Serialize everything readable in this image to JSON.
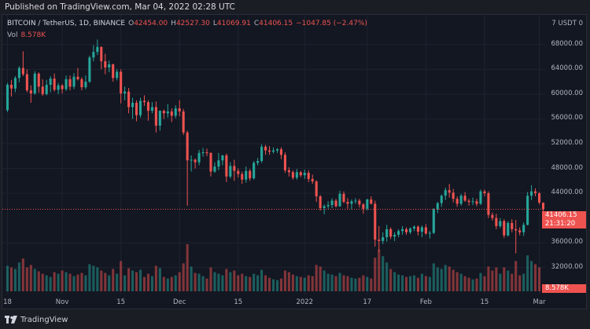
{
  "published": "Published on TradingView.com, Mar 04, 2022 02:28 UTC",
  "legend": {
    "symbol": "BITCOIN / TetherUS, 1D, BINANCE",
    "o_label": "O",
    "o": "42454.00",
    "h_label": "H",
    "h": "42527.30",
    "l_label": "L",
    "l": "41069.91",
    "c_label": "C",
    "c": "41406.15",
    "change": "−1047.85 (−2.47%)"
  },
  "volume": {
    "label": "Vol",
    "value": "8.578K"
  },
  "currency": "7 USDT 0",
  "price_tag": {
    "price": "41406.15",
    "countdown": "21:31:20"
  },
  "volume_tag": "8.578K",
  "brand": "TradingView",
  "colors": {
    "up": "#26a69a",
    "down": "#ef5350",
    "bg": "#131722",
    "grid": "#1f2330"
  },
  "chart_data": {
    "type": "candlestick",
    "y_ticks": [
      "68000.00",
      "64000.00",
      "60000.00",
      "56000.00",
      "52000.00",
      "48000.00",
      "44000.00",
      "36000.00",
      "32000.00"
    ],
    "y_tick_values": [
      68000,
      64000,
      60000,
      56000,
      52000,
      48000,
      44000,
      36000,
      32000
    ],
    "ylim": [
      30200,
      71000
    ],
    "x_ticks": [
      "18",
      "Nov",
      "15",
      "Dec",
      "15",
      "2022",
      "17",
      "Feb",
      "15",
      "Mar"
    ],
    "x_tick_index": [
      0,
      14,
      29,
      44,
      59,
      76,
      92,
      107,
      122,
      136
    ],
    "last_price": 41406.15,
    "ohlcv": [
      [
        57400,
        61800,
        57100,
        61500,
        32
      ],
      [
        61500,
        62300,
        59600,
        60900,
        30
      ],
      [
        60900,
        62900,
        60300,
        62600,
        28
      ],
      [
        62600,
        64500,
        61900,
        64200,
        36
      ],
      [
        64200,
        66900,
        62900,
        63200,
        41
      ],
      [
        63200,
        64000,
        60300,
        60600,
        30
      ],
      [
        60600,
        61400,
        58600,
        60100,
        33
      ],
      [
        60100,
        63700,
        59900,
        63300,
        28
      ],
      [
        63300,
        63500,
        60200,
        61200,
        25
      ],
      [
        61200,
        62400,
        59700,
        60000,
        22
      ],
      [
        60000,
        62300,
        59800,
        61500,
        20
      ],
      [
        61500,
        62900,
        60300,
        62500,
        18
      ],
      [
        62500,
        63300,
        60400,
        60700,
        24
      ],
      [
        60700,
        61800,
        60000,
        61400,
        22
      ],
      [
        61400,
        61600,
        60100,
        60800,
        26
      ],
      [
        60800,
        63000,
        60500,
        62400,
        24
      ],
      [
        62400,
        63000,
        60600,
        61200,
        22
      ],
      [
        61200,
        63400,
        60800,
        62800,
        19
      ],
      [
        62800,
        64200,
        62200,
        62400,
        21
      ],
      [
        62400,
        62700,
        60600,
        61100,
        23
      ],
      [
        61100,
        63000,
        60800,
        62000,
        20
      ],
      [
        62000,
        66200,
        61800,
        65900,
        34
      ],
      [
        65900,
        67900,
        65300,
        66800,
        32
      ],
      [
        66800,
        68800,
        66300,
        67600,
        30
      ],
      [
        67600,
        67700,
        64000,
        65300,
        26
      ],
      [
        65300,
        66500,
        63200,
        64300,
        23
      ],
      [
        64300,
        65400,
        63500,
        64800,
        20
      ],
      [
        64800,
        64900,
        62000,
        62600,
        28
      ],
      [
        62600,
        64000,
        62200,
        63600,
        22
      ],
      [
        63600,
        64000,
        58500,
        60100,
        38
      ],
      [
        60100,
        61200,
        59000,
        60400,
        20
      ],
      [
        60400,
        61000,
        56900,
        57900,
        29
      ],
      [
        57900,
        59400,
        56000,
        58600,
        26
      ],
      [
        58600,
        59000,
        55600,
        56600,
        24
      ],
      [
        56600,
        59400,
        56200,
        58900,
        27
      ],
      [
        58900,
        59800,
        58100,
        58700,
        18
      ],
      [
        58700,
        59000,
        55700,
        57300,
        22
      ],
      [
        57300,
        58700,
        56900,
        57900,
        19
      ],
      [
        57900,
        58800,
        53800,
        54900,
        32
      ],
      [
        54900,
        57400,
        54100,
        57300,
        29
      ],
      [
        57300,
        57500,
        56000,
        56900,
        18
      ],
      [
        56900,
        58400,
        56200,
        57200,
        16
      ],
      [
        57200,
        57700,
        55500,
        56500,
        18
      ],
      [
        56500,
        58200,
        56100,
        57700,
        20
      ],
      [
        57700,
        59000,
        56400,
        57200,
        24
      ],
      [
        57200,
        57600,
        53400,
        53800,
        35
      ],
      [
        53800,
        54100,
        42000,
        49300,
        59
      ],
      [
        49300,
        50100,
        47500,
        49400,
        31
      ],
      [
        49400,
        49600,
        48000,
        49000,
        23
      ],
      [
        49000,
        51000,
        48500,
        50500,
        22
      ],
      [
        50500,
        51300,
        49900,
        50600,
        19
      ],
      [
        50600,
        51200,
        50000,
        50500,
        16
      ],
      [
        50500,
        50600,
        46700,
        47500,
        30
      ],
      [
        47500,
        49000,
        47300,
        48300,
        24
      ],
      [
        48300,
        50500,
        47700,
        49300,
        22
      ],
      [
        49300,
        50200,
        48500,
        50100,
        20
      ],
      [
        50100,
        50400,
        45800,
        46700,
        28
      ],
      [
        46700,
        49000,
        46400,
        48400,
        24
      ],
      [
        48400,
        49400,
        46000,
        47600,
        26
      ],
      [
        47600,
        48000,
        46500,
        47100,
        20
      ],
      [
        47100,
        47500,
        45500,
        46200,
        22
      ],
      [
        46200,
        48300,
        45700,
        47600,
        19
      ],
      [
        47600,
        47900,
        46000,
        46400,
        18
      ],
      [
        46400,
        49200,
        46200,
        48900,
        22
      ],
      [
        48900,
        49700,
        48500,
        49200,
        20
      ],
      [
        49200,
        51900,
        48900,
        51500,
        27
      ],
      [
        51500,
        51800,
        50200,
        50900,
        20
      ],
      [
        50900,
        51600,
        50200,
        50700,
        17
      ],
      [
        50700,
        51400,
        50400,
        50900,
        15
      ],
      [
        50900,
        51300,
        50500,
        51100,
        14
      ],
      [
        51100,
        51400,
        49500,
        50200,
        16
      ],
      [
        50200,
        50600,
        47300,
        47700,
        26
      ],
      [
        47700,
        48200,
        46700,
        47400,
        24
      ],
      [
        47400,
        47700,
        46200,
        46500,
        21
      ],
      [
        46500,
        47900,
        46200,
        47400,
        19
      ],
      [
        47400,
        47600,
        46600,
        46900,
        18
      ],
      [
        46900,
        47800,
        46300,
        47300,
        17
      ],
      [
        47300,
        47700,
        45800,
        46300,
        20
      ],
      [
        46300,
        47000,
        45500,
        45900,
        19
      ],
      [
        45900,
        46100,
        42600,
        43500,
        33
      ],
      [
        43500,
        43700,
        41200,
        41600,
        31
      ],
      [
        41600,
        42200,
        40600,
        41900,
        26
      ],
      [
        41900,
        42700,
        41500,
        42100,
        22
      ],
      [
        42100,
        43200,
        41600,
        42800,
        21
      ],
      [
        42800,
        43100,
        41700,
        41900,
        19
      ],
      [
        41900,
        44400,
        41800,
        43900,
        23
      ],
      [
        43900,
        44300,
        42400,
        42600,
        20
      ],
      [
        42600,
        43200,
        41500,
        42300,
        19
      ],
      [
        42300,
        43000,
        41400,
        42700,
        17
      ],
      [
        42700,
        43200,
        42300,
        42800,
        16
      ],
      [
        42800,
        43100,
        41700,
        42200,
        17
      ],
      [
        42200,
        42400,
        40700,
        41500,
        20
      ],
      [
        41500,
        43100,
        41200,
        43000,
        18
      ],
      [
        43000,
        43500,
        42200,
        42300,
        16
      ],
      [
        42300,
        42800,
        35400,
        36500,
        42
      ],
      [
        36500,
        38700,
        34600,
        36300,
        52
      ],
      [
        36300,
        37700,
        35800,
        36900,
        44
      ],
      [
        36900,
        38900,
        36200,
        38200,
        36
      ],
      [
        38200,
        38500,
        36600,
        37000,
        28
      ],
      [
        37000,
        37700,
        36300,
        37300,
        24
      ],
      [
        37300,
        38200,
        36900,
        37900,
        21
      ],
      [
        37900,
        38700,
        37300,
        38200,
        20
      ],
      [
        38200,
        38500,
        37300,
        37700,
        18
      ],
      [
        37700,
        38500,
        37400,
        38300,
        19
      ],
      [
        38300,
        38800,
        37900,
        38600,
        20
      ],
      [
        38600,
        38800,
        37200,
        37800,
        17
      ],
      [
        37800,
        38800,
        36900,
        38500,
        22
      ],
      [
        38500,
        39000,
        37300,
        37500,
        19
      ],
      [
        37500,
        37900,
        36700,
        37600,
        18
      ],
      [
        37600,
        41600,
        37400,
        41400,
        35
      ],
      [
        41400,
        42600,
        40800,
        42400,
        30
      ],
      [
        42400,
        43800,
        41800,
        43600,
        28
      ],
      [
        43600,
        44900,
        42900,
        44500,
        33
      ],
      [
        44500,
        45500,
        43300,
        44100,
        31
      ],
      [
        44100,
        44700,
        42500,
        43100,
        27
      ],
      [
        43100,
        43500,
        41800,
        42300,
        24
      ],
      [
        42300,
        43900,
        42000,
        43600,
        22
      ],
      [
        43600,
        44200,
        42600,
        42800,
        19
      ],
      [
        42800,
        43100,
        42000,
        42600,
        17
      ],
      [
        42600,
        43300,
        42100,
        42700,
        15
      ],
      [
        42700,
        43100,
        41900,
        42300,
        16
      ],
      [
        42300,
        44600,
        42100,
        44300,
        23
      ],
      [
        44300,
        44600,
        43500,
        44000,
        19
      ],
      [
        44000,
        44300,
        40000,
        40500,
        31
      ],
      [
        40500,
        40900,
        39600,
        40000,
        26
      ],
      [
        40000,
        40700,
        38200,
        38700,
        30
      ],
      [
        38700,
        40000,
        38400,
        39500,
        22
      ],
      [
        39500,
        39800,
        36800,
        37200,
        30
      ],
      [
        37200,
        39500,
        37000,
        39200,
        26
      ],
      [
        39200,
        39800,
        37700,
        38200,
        22
      ],
      [
        38200,
        39700,
        34300,
        38000,
        38
      ],
      [
        38000,
        38500,
        37200,
        37700,
        20
      ],
      [
        37700,
        39300,
        37100,
        38900,
        22
      ],
      [
        38900,
        44200,
        38800,
        43600,
        45
      ],
      [
        43600,
        45300,
        42900,
        44300,
        38
      ],
      [
        44300,
        44800,
        43500,
        44000,
        34
      ],
      [
        44000,
        44200,
        42200,
        42500,
        30
      ],
      [
        42454,
        42527,
        41070,
        41406,
        8.6
      ]
    ]
  }
}
